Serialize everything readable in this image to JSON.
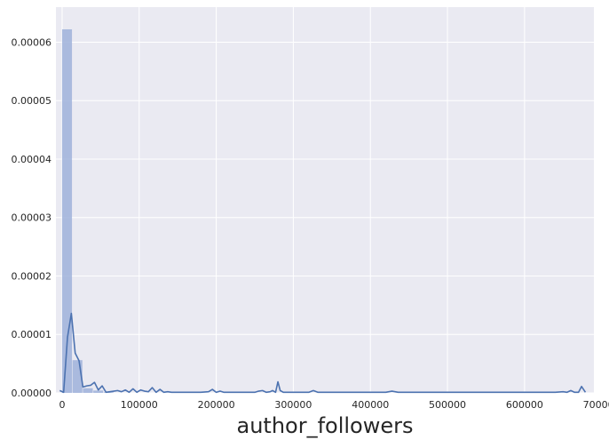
{
  "chart_data": {
    "type": "histogram",
    "xlabel": "author_followers",
    "ylabel": "",
    "xlim": [
      -8000,
      690000
    ],
    "ylim": [
      0,
      6.6e-05
    ],
    "grid": true,
    "background_color": "#EAEAF2",
    "grid_color": "#FFFFFF",
    "hist_color": "#9FB2DA",
    "kde_color": "#4C72B0",
    "x_ticks": [
      0,
      100000,
      200000,
      300000,
      400000,
      500000,
      600000,
      700000
    ],
    "x_tick_labels": [
      "0",
      "100000",
      "200000",
      "300000",
      "400000",
      "500000",
      "600000",
      "700000"
    ],
    "y_ticks": [
      0,
      1e-05,
      2e-05,
      3e-05,
      4e-05,
      5e-05,
      6e-05
    ],
    "y_tick_labels": [
      "0.00000",
      "0.00001",
      "0.00002",
      "0.00003",
      "0.00004",
      "0.00005",
      "0.00006"
    ],
    "bins": [
      {
        "x0": 0,
        "x1": 13500,
        "value": 6.22e-05
      },
      {
        "x0": 13500,
        "x1": 27000,
        "value": 5.6e-06
      },
      {
        "x0": 27000,
        "x1": 40500,
        "value": 8e-07
      },
      {
        "x0": 40500,
        "x1": 54000,
        "value": 4e-07
      },
      {
        "x0": 54000,
        "x1": 67500,
        "value": 1e-07
      }
    ],
    "kde": {
      "x": [
        -3000,
        2000,
        7000,
        12000,
        17000,
        22000,
        27000,
        32000,
        37000,
        42000,
        47000,
        52000,
        57000,
        62000,
        67000,
        72000,
        77000,
        82000,
        87000,
        92000,
        97000,
        102000,
        107000,
        112000,
        117000,
        122000,
        127000,
        132000,
        137000,
        142000,
        150000,
        160000,
        170000,
        180000,
        190000,
        195000,
        200000,
        205000,
        210000,
        220000,
        230000,
        240000,
        250000,
        255000,
        260000,
        265000,
        270000,
        273000,
        277000,
        280000,
        283000,
        287000,
        292000,
        300000,
        310000,
        320000,
        326000,
        332000,
        340000,
        360000,
        380000,
        400000,
        420000,
        428000,
        436000,
        450000,
        470000,
        500000,
        530000,
        560000,
        590000,
        620000,
        640000,
        650000,
        655000,
        660000,
        665000,
        670000,
        674000,
        679000
      ],
      "y": [
        4e-07,
        1e-07,
        9.5e-06,
        1.36e-05,
        6.8e-06,
        5.5e-06,
        1e-06,
        1.2e-06,
        1.3e-06,
        1.8e-06,
        5e-07,
        1.2e-06,
        1e-07,
        2e-07,
        3e-07,
        4e-07,
        2e-07,
        5e-07,
        1e-07,
        7e-07,
        1e-07,
        5e-07,
        3e-07,
        2e-07,
        9e-07,
        1e-07,
        6e-07,
        1e-07,
        2e-07,
        1e-07,
        1e-07,
        1e-07,
        1e-07,
        1e-07,
        2e-07,
        6e-07,
        1e-07,
        3e-07,
        1e-07,
        1e-07,
        1e-07,
        1e-07,
        1e-07,
        3e-07,
        4e-07,
        1e-07,
        2e-07,
        4e-07,
        1e-07,
        1.9e-06,
        4e-07,
        1e-07,
        1e-07,
        1e-07,
        1e-07,
        1e-07,
        4e-07,
        1e-07,
        1e-07,
        1e-07,
        1e-07,
        1e-07,
        1e-07,
        3e-07,
        1e-07,
        1e-07,
        1e-07,
        1e-07,
        1e-07,
        1e-07,
        1e-07,
        1e-07,
        1e-07,
        2e-07,
        1e-07,
        4e-07,
        1e-07,
        1e-07,
        1.1e-06,
        1e-07
      ]
    }
  }
}
